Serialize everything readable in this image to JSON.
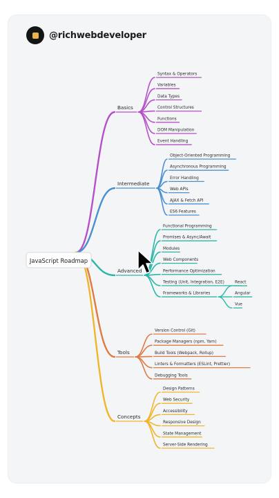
{
  "header": {
    "handle": "@richwebdeveloper"
  },
  "mindmap": {
    "root": "JavaScript Roadmap",
    "branches": [
      {
        "label": "Basics",
        "color": "#b450c8",
        "children": [
          {
            "label": "Syntax & Operators"
          },
          {
            "label": "Variables"
          },
          {
            "label": "Data Types"
          },
          {
            "label": "Control Structures"
          },
          {
            "label": "Functions"
          },
          {
            "label": "DOM Manipulation"
          },
          {
            "label": "Event Handling"
          }
        ]
      },
      {
        "label": "Intermediate",
        "color": "#4a90d0",
        "children": [
          {
            "label": "Object-Oriented Programming"
          },
          {
            "label": "Asynchronous Programming"
          },
          {
            "label": "Error Handling"
          },
          {
            "label": "Web APIs"
          },
          {
            "label": "AJAX & Fetch API"
          },
          {
            "label": "ES6 Features"
          }
        ]
      },
      {
        "label": "Advanced",
        "color": "#2bb5a8",
        "children": [
          {
            "label": "Functional Programming"
          },
          {
            "label": "Promises & Async/Await"
          },
          {
            "label": "Modules"
          },
          {
            "label": "Web Components"
          },
          {
            "label": "Performance Optimization"
          },
          {
            "label": "Testing (Unit, Integration, E2E)"
          },
          {
            "label": "Frameworks & Libraries",
            "children": [
              {
                "label": "React"
              },
              {
                "label": "Angular"
              },
              {
                "label": "Vue"
              }
            ]
          }
        ]
      },
      {
        "label": "Tools",
        "color": "#e07a43",
        "children": [
          {
            "label": "Version Control (Git)"
          },
          {
            "label": "Package Managers (npm, Yarn)"
          },
          {
            "label": "Build Tools (Webpack, Rollup)"
          },
          {
            "label": "Linters & Formatters (ESLint, Prettier)"
          },
          {
            "label": "Debugging Tools"
          }
        ]
      },
      {
        "label": "Concepts",
        "color": "#f0b52a",
        "children": [
          {
            "label": "Design Patterns"
          },
          {
            "label": "Web Security"
          },
          {
            "label": "Accessibility"
          },
          {
            "label": "Responsive Design"
          },
          {
            "label": "State Management"
          },
          {
            "label": "Server-Side Rendering"
          }
        ]
      }
    ]
  }
}
